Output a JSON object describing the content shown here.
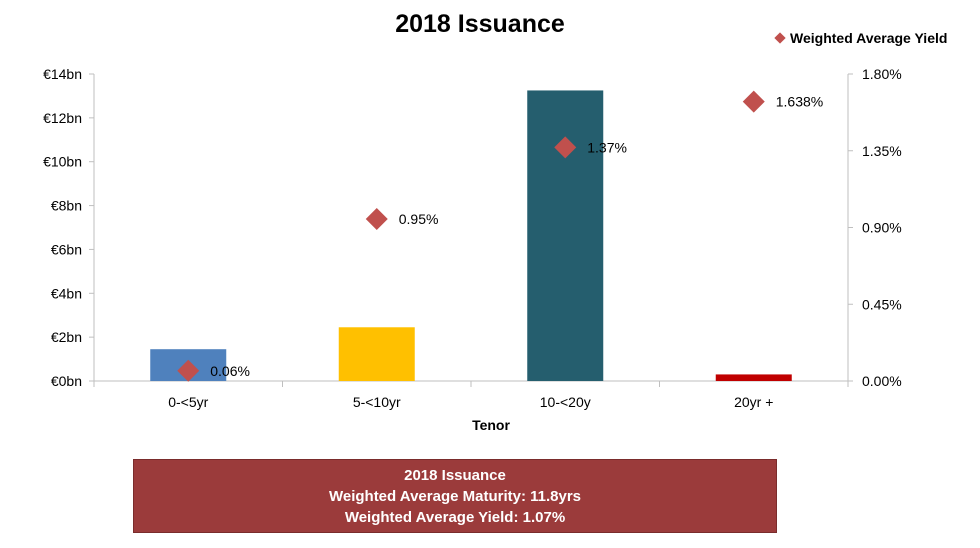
{
  "colors": {
    "bar_colors": [
      "#4f81bd",
      "#ffc000",
      "#255e6e",
      "#c00000"
    ],
    "yield_marker": "#c0504d",
    "summary_bg": "#9b3b3b",
    "axis": "#bfbfbf"
  },
  "chart_data": {
    "type": "bar",
    "title": "2018 Issuance",
    "xlabel": "Tenor",
    "ylabel": "",
    "categories": [
      "0-<5yr",
      "5-<10yr",
      "10-<20y",
      "20yr +"
    ],
    "series": [
      {
        "type": "bar",
        "values": [
          1.45,
          2.45,
          13.25,
          0.3
        ]
      },
      {
        "name": "Weighted Average Yield",
        "type": "scatter",
        "axis": "right",
        "values": [
          0.06,
          0.95,
          1.37,
          1.638
        ],
        "labels": [
          "0.06%",
          "0.95%",
          "1.37%",
          "1.638%"
        ]
      }
    ],
    "ylim": [
      0,
      14
    ],
    "yticks": [
      0,
      2,
      4,
      6,
      8,
      10,
      12,
      14
    ],
    "ytick_labels": [
      "€0bn",
      "€2bn",
      "€4bn",
      "€6bn",
      "€8bn",
      "€10bn",
      "€12bn",
      "€14bn"
    ],
    "y2lim": [
      0,
      1.8
    ],
    "y2ticks": [
      0,
      0.45,
      0.9,
      1.35,
      1.8
    ],
    "y2tick_labels": [
      "0.00%",
      "0.45%",
      "0.90%",
      "1.35%",
      "1.80%"
    ],
    "grid": false,
    "legend_position": "top-right"
  },
  "summary": {
    "line1": "2018 Issuance",
    "line2": "Weighted Average Maturity: 11.8yrs",
    "line3": "Weighted Average Yield: 1.07%"
  }
}
